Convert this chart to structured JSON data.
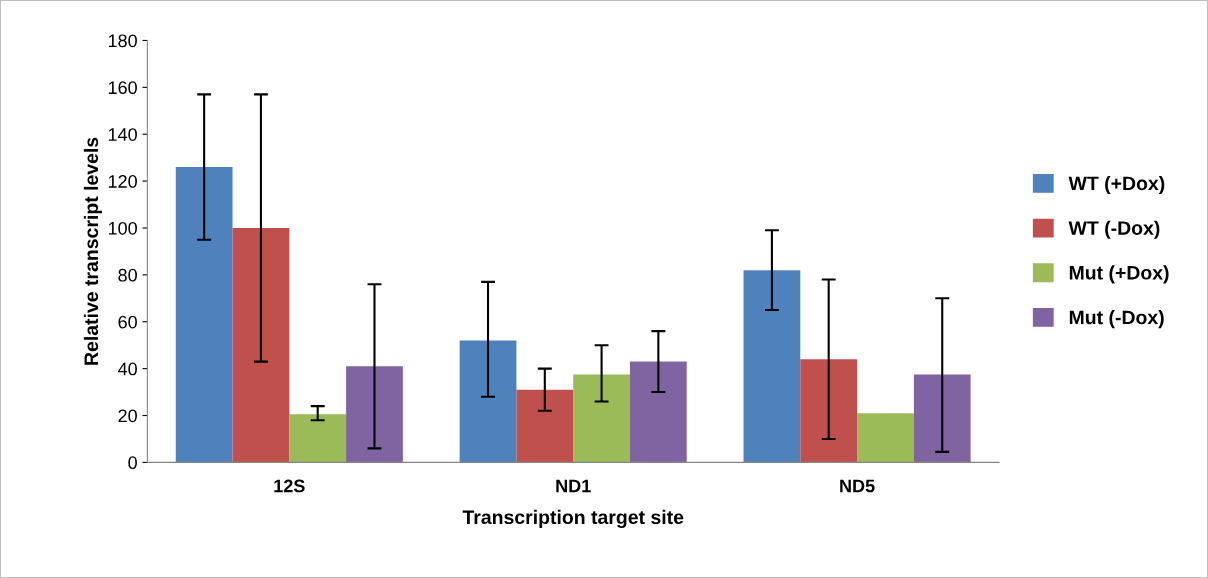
{
  "chart_data": {
    "type": "bar",
    "xlabel": "Transcription target site",
    "ylabel": "Relative transcript levels",
    "categories": [
      "12S",
      "ND1",
      "ND5"
    ],
    "series": [
      {
        "name": "WT (+Dox)",
        "color": "#4f81bd",
        "values": [
          126,
          52,
          82
        ],
        "errors": [
          [
            95,
            157
          ],
          [
            28,
            77
          ],
          [
            65,
            99
          ]
        ]
      },
      {
        "name": "WT (-Dox)",
        "color": "#c0504d",
        "values": [
          100,
          31,
          44
        ],
        "errors": [
          [
            43,
            157
          ],
          [
            22,
            40
          ],
          [
            10,
            78
          ]
        ]
      },
      {
        "name": "Mut (+Dox)",
        "color": "#9bbb59",
        "values": [
          20.5,
          37.5,
          21
        ],
        "errors": [
          [
            18,
            24
          ],
          [
            26,
            50
          ],
          null
        ]
      },
      {
        "name": "Mut (-Dox)",
        "color": "#8064a2",
        "values": [
          41,
          43,
          37.5
        ],
        "errors": [
          [
            6,
            76
          ],
          [
            30,
            56
          ],
          [
            4.5,
            70
          ]
        ]
      }
    ],
    "ylim": [
      0,
      180
    ],
    "yticks": [
      0,
      20,
      40,
      60,
      80,
      100,
      120,
      140,
      160,
      180
    ],
    "grid": false,
    "legend": "right"
  }
}
